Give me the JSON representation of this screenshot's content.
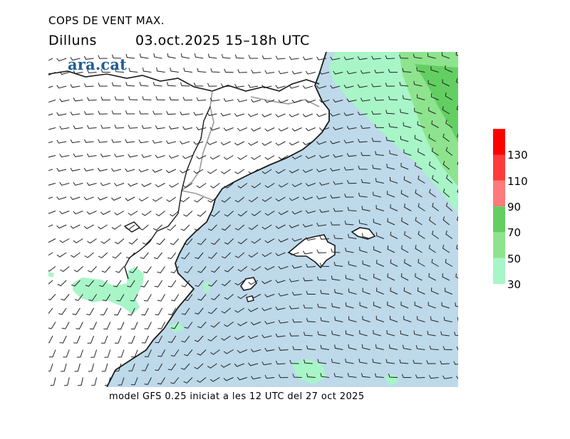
{
  "header": {
    "title": "COPS DE VENT MAX.",
    "day": "Dilluns",
    "date_range": "03.oct.2025 15–18h UTC"
  },
  "logo": {
    "text": "ara.cat",
    "color": "#1f5f95"
  },
  "footer": {
    "text": "model GFS 0.25 iniciat a les 12 UTC del 27 oct 2025"
  },
  "legend": {
    "labels": [
      "130",
      "110",
      "90",
      "70",
      "50",
      "30"
    ],
    "bins": [
      {
        "from": 30,
        "to": 50,
        "color": "#a8f5c8"
      },
      {
        "from": 50,
        "to": 70,
        "color": "#8ee48e"
      },
      {
        "from": 70,
        "to": 90,
        "color": "#63cf63"
      },
      {
        "from": 90,
        "to": 110,
        "color": "#ff7a7a"
      },
      {
        "from": 110,
        "to": 130,
        "color": "#ff3a3a"
      },
      {
        "from": 130,
        "to": 150,
        "color": "#ff0000"
      }
    ]
  },
  "colors": {
    "sea": "#bdd9ea",
    "land": "#ffffff",
    "coast": "#1a1a1a",
    "border": "#9a9a9a",
    "barb": "#222222"
  }
}
